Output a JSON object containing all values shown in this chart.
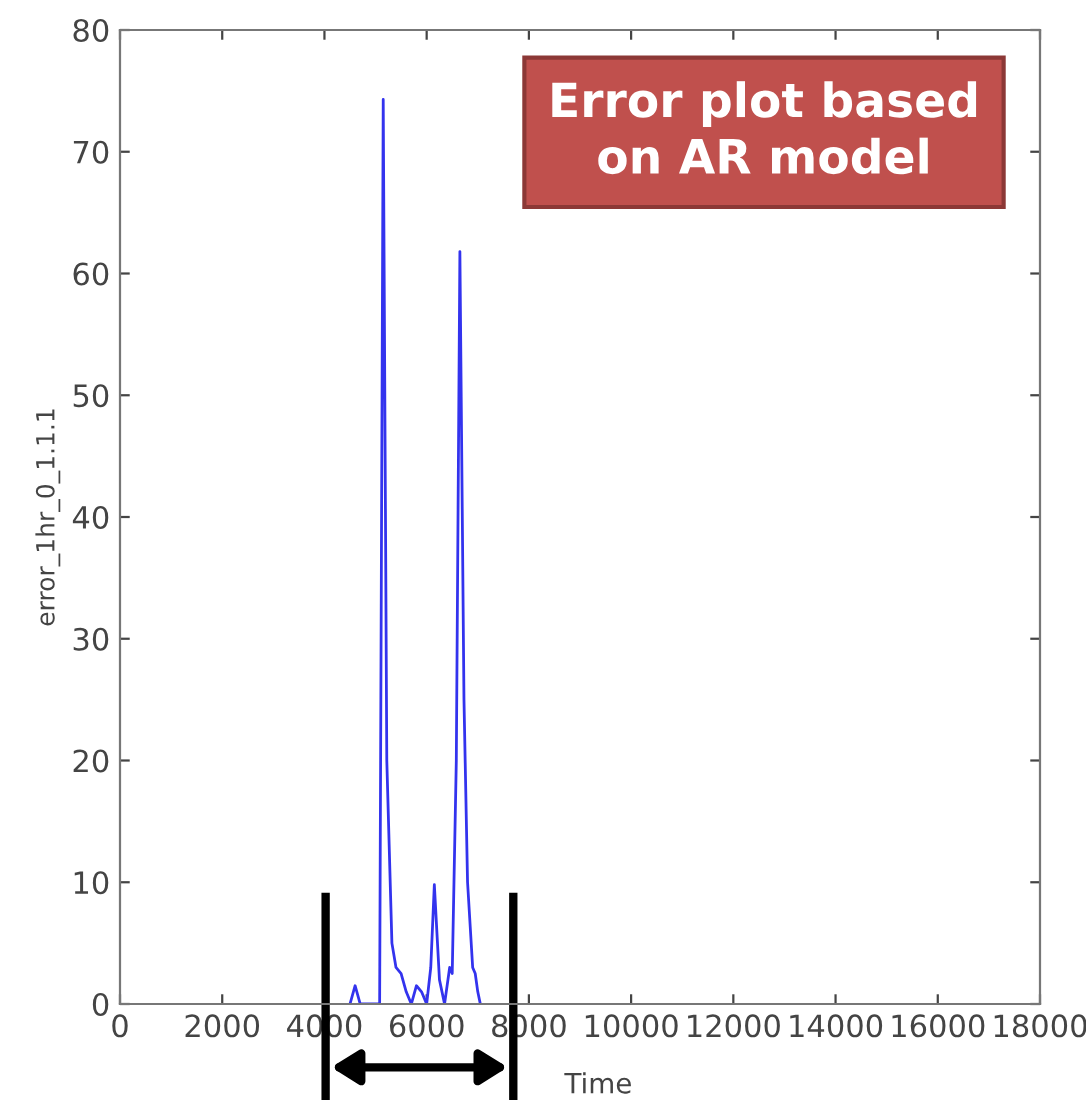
{
  "chart_data": {
    "type": "line",
    "xlabel": "Time",
    "ylabel": "error_1hr_0_1.1.1",
    "x": [
      4500,
      4600,
      4700,
      5080,
      5150,
      5220,
      5320,
      5400,
      5500,
      5600,
      5700,
      5800,
      5900,
      6000,
      6080,
      6150,
      6250,
      6350,
      6450,
      6500,
      6580,
      6650,
      6730,
      6800,
      6900,
      6950,
      7000,
      7050
    ],
    "series": [
      {
        "color": "#3333ee",
        "values": [
          0,
          1.5,
          0,
          0,
          74.3,
          20,
          5,
          3,
          2.5,
          1,
          0,
          1.5,
          1,
          0,
          3,
          9.8,
          2,
          0,
          3,
          2.5,
          20,
          61.8,
          25,
          10,
          3,
          2.5,
          1,
          0
        ]
      }
    ],
    "xlim": [
      0,
      18000
    ],
    "xticks": [
      0,
      2000,
      4000,
      6000,
      8000,
      10000,
      12000,
      14000,
      16000,
      18000
    ],
    "ylim": [
      0,
      80
    ],
    "yticks": [
      0,
      10,
      20,
      30,
      40,
      50,
      60,
      70,
      80
    ],
    "annotations": [
      "Error plot based\non AR model"
    ],
    "grid": false,
    "legend": false,
    "marker": "none",
    "line_style": "solid"
  }
}
